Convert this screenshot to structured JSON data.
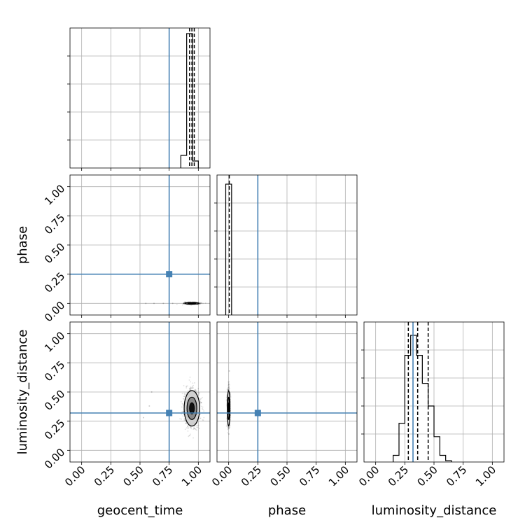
{
  "chart_data": {
    "type": "corner",
    "parameters": [
      "geocent_time",
      "phase",
      "luminosity_distance"
    ],
    "axis_range": [
      -0.1,
      1.1
    ],
    "ticks": [
      "0.00",
      "0.25",
      "0.50",
      "0.75",
      "1.00"
    ],
    "tick_values": [
      0,
      0.25,
      0.5,
      0.75,
      1.0
    ],
    "truth_color": "#4682b4",
    "truths": {
      "geocent_time": 0.75,
      "phase": 0.25,
      "luminosity_distance": 0.32
    },
    "histograms": {
      "geocent_time": {
        "bin_width": 0.05,
        "bins": [
          {
            "x0": 0.85,
            "h": 0.09
          },
          {
            "x0": 0.9,
            "h": 0.96
          },
          {
            "x0": 0.95,
            "h": 0.05
          }
        ],
        "quantiles": [
          0.925,
          0.945,
          0.965
        ],
        "ylim": [
          0,
          1.0
        ]
      },
      "phase": {
        "bin_width": 0.05,
        "bins": [
          {
            "x0": -0.025,
            "h": 1.0
          }
        ],
        "quantiles": [
          0.005
        ],
        "ylim": [
          0,
          1.07
        ]
      },
      "luminosity_distance": {
        "bin_width": 0.05,
        "bins": [
          {
            "x0": 0.15,
            "h": 0.05
          },
          {
            "x0": 0.2,
            "h": 0.29
          },
          {
            "x0": 0.25,
            "h": 0.8
          },
          {
            "x0": 0.3,
            "h": 0.95
          },
          {
            "x0": 0.35,
            "h": 0.8
          },
          {
            "x0": 0.4,
            "h": 0.59
          },
          {
            "x0": 0.45,
            "h": 0.42
          },
          {
            "x0": 0.5,
            "h": 0.19
          },
          {
            "x0": 0.55,
            "h": 0.05
          },
          {
            "x0": 0.6,
            "h": 0.01
          }
        ],
        "quantiles": [
          0.28,
          0.36,
          0.45
        ],
        "ylim": [
          0,
          1.05
        ]
      }
    },
    "joint": {
      "phase_vs_geocent_time": {
        "center": [
          0.945,
          0.0
        ],
        "spread": [
          0.03,
          0.004
        ],
        "outliers": [
          [
            0.55,
            0.0
          ],
          [
            0.62,
            0.0
          ],
          [
            0.7,
            0.0
          ],
          [
            0.78,
            0.0
          ]
        ]
      },
      "luminosity_distance_vs_geocent_time": {
        "center": [
          0.945,
          0.36
        ],
        "spread": [
          0.035,
          0.08
        ],
        "outliers": [
          [
            0.58,
            0.38
          ],
          [
            0.6,
            0.5
          ],
          [
            0.53,
            0.28
          ]
        ]
      },
      "luminosity_distance_vs_phase": {
        "center": [
          0.0,
          0.36
        ],
        "spread": [
          0.006,
          0.08
        ],
        "outliers": [
          [
            0.005,
            0.68
          ],
          [
            0.002,
            0.14
          ]
        ]
      }
    }
  }
}
